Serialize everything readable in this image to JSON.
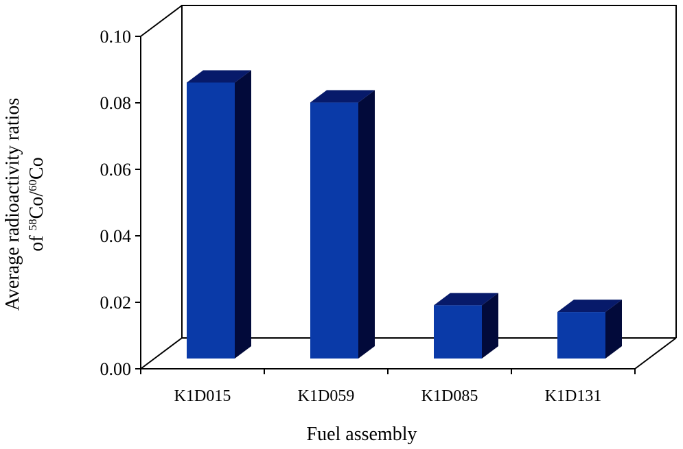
{
  "chart_data": {
    "type": "bar",
    "categories": [
      "K1D015",
      "K1D059",
      "K1D085",
      "K1D131"
    ],
    "values": [
      0.083,
      0.077,
      0.016,
      0.014
    ],
    "ylim": [
      0.0,
      0.1
    ],
    "yticks": [
      "0.00",
      "0.02",
      "0.04",
      "0.06",
      "0.08",
      "0.10"
    ],
    "xlabel": "Fuel assembly",
    "ylabel_line1": "Average radioactivity ratios",
    "ylabel_line2_prefix": "of ",
    "ylabel_sup1": "58",
    "ylabel_mid": "Co/",
    "ylabel_sup2": "60",
    "ylabel_end": "Co",
    "grid": false,
    "legend": "none",
    "style": "3d",
    "colors": {
      "bar_front": "#0a3aa8",
      "bar_side": "#020a3a",
      "bar_top": "#071a6a"
    }
  }
}
